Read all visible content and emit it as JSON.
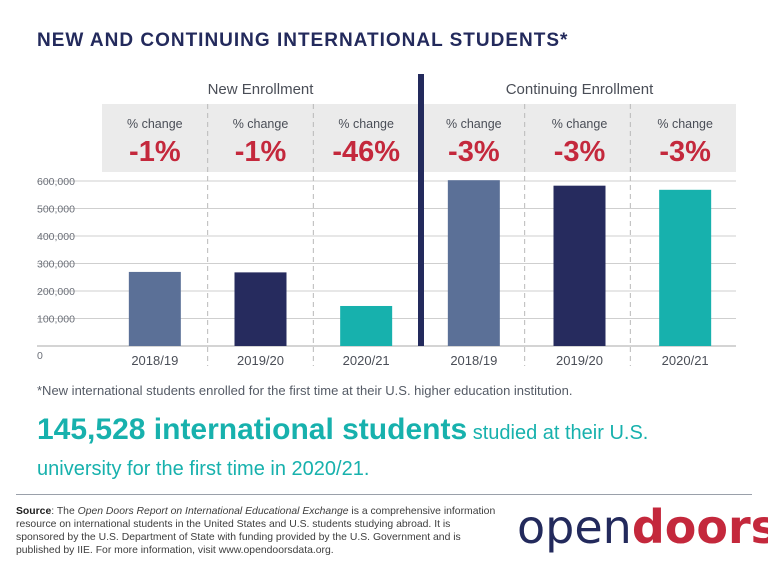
{
  "title": "NEW AND CONTINUING INTERNATIONAL STUDENTS*",
  "chart_data": {
    "type": "bar",
    "groups": [
      {
        "name": "New Enrollment"
      },
      {
        "name": "Continuing Enrollment"
      }
    ],
    "categories": [
      "2018/19",
      "2019/20",
      "2020/21",
      "2018/19",
      "2019/20",
      "2020/21"
    ],
    "values": [
      269383,
      267712,
      145528,
      603000,
      583000,
      568000
    ],
    "change_label": "% change",
    "changes": [
      "-1%",
      "-1%",
      "-46%",
      "-3%",
      "-3%",
      "-3%"
    ],
    "bar_colors": [
      "#5b7097",
      "#262b5e",
      "#17b1ad",
      "#5b7097",
      "#262b5e",
      "#17b1ad"
    ],
    "y_ticks": [
      "0",
      "100,000",
      "200,000",
      "300,000",
      "400,000",
      "500,000",
      "600,000"
    ],
    "ylim": [
      0,
      600000
    ],
    "grid": true,
    "change_color": "#c4283c"
  },
  "footnote": "*New international students enrolled for the first time at their U.S. higher education institution.",
  "headline": {
    "big": "145,528 international students",
    "rest": " studied at their U.S. university for the first time in 2020/21."
  },
  "source": {
    "label": "Source",
    "pre": ": The ",
    "italic": "Open Doors Report on International Educational Exchange",
    "post": " is a comprehensive information resource on international students in the United States and U.S. students studying abroad. It is sponsored by the U.S. Department of State with funding provided by the U.S. Government and is published by IIE. For more information, visit www.opendoorsdata.org."
  },
  "logo": {
    "part1": "open",
    "part2": "doors",
    "mark": "®"
  }
}
